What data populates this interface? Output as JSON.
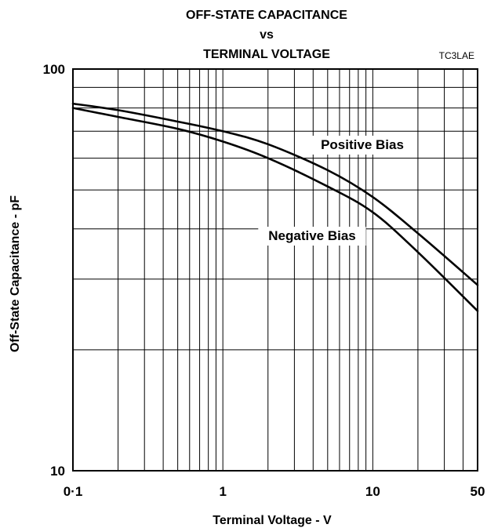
{
  "chart_data": {
    "type": "line",
    "title_lines": [
      "OFF-STATE CAPACITANCE",
      "vs",
      "TERMINAL VOLTAGE"
    ],
    "figure_code": "TC3LAE",
    "xlabel": "Terminal Voltage  - V",
    "ylabel": "Off-State Capacitance - pF",
    "x_scale": "log",
    "y_scale": "log",
    "xlim": [
      0.1,
      50
    ],
    "ylim": [
      10,
      100
    ],
    "x_ticks": [
      {
        "value": 0.1,
        "label": "0·1"
      },
      {
        "value": 1,
        "label": "1"
      },
      {
        "value": 10,
        "label": "10"
      },
      {
        "value": 50,
        "label": "50"
      }
    ],
    "y_ticks": [
      {
        "value": 10,
        "label": "10"
      },
      {
        "value": 100,
        "label": "100"
      }
    ],
    "grid": true,
    "series": [
      {
        "name": "Positive Bias",
        "x": [
          0.1,
          0.2,
          0.5,
          1,
          2,
          5,
          10,
          20,
          50
        ],
        "y": [
          82,
          79,
          74,
          70,
          65,
          56,
          48,
          39,
          29
        ]
      },
      {
        "name": "Negative Bias",
        "x": [
          0.1,
          0.2,
          0.5,
          1,
          2,
          5,
          10,
          20,
          50
        ],
        "y": [
          80,
          76,
          71,
          66,
          60,
          51,
          44,
          35,
          25
        ]
      }
    ]
  }
}
